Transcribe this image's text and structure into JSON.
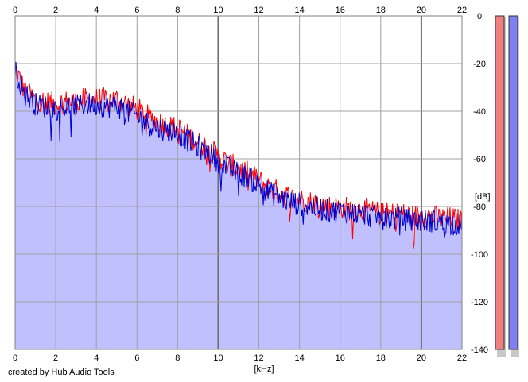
{
  "credit": "created by Hub Audio Tools",
  "chart_data": {
    "type": "area",
    "xlabel": "[kHz]",
    "ylabel": "[dB]",
    "xlim": [
      0,
      22
    ],
    "ylim": [
      -140,
      0
    ],
    "x_ticks": [
      0,
      2,
      4,
      6,
      8,
      10,
      12,
      14,
      16,
      18,
      20,
      22
    ],
    "y_ticks": [
      0,
      -20,
      -40,
      -60,
      -80,
      -100,
      -120,
      -140
    ],
    "grid": true,
    "colors": {
      "fill": "#c0c0ff",
      "channel_1": "#ff0000",
      "channel_2": "#0000cc",
      "grid": "#a0a0a0",
      "grid_major": "#6e6e6e",
      "meter_1": "#f08080",
      "meter_2": "#8080f0"
    },
    "series": [
      {
        "color": "#ff0000",
        "x": [
          0,
          0.5,
          1,
          1.5,
          2,
          2.5,
          3,
          3.5,
          4,
          4.5,
          5,
          5.5,
          6,
          6.5,
          7,
          7.5,
          8,
          8.5,
          9,
          9.5,
          10,
          10.5,
          11,
          11.5,
          12,
          12.5,
          13,
          13.5,
          14,
          14.5,
          15,
          15.5,
          16,
          16.5,
          17,
          17.5,
          18,
          18.5,
          19,
          19.5,
          20,
          20.5,
          21,
          21.5,
          22
        ],
        "values": [
          -22,
          -32,
          -35,
          -36,
          -37,
          -36,
          -36,
          -35,
          -35,
          -35,
          -35,
          -37,
          -39,
          -42,
          -44,
          -46,
          -47,
          -50,
          -53,
          -55,
          -59,
          -62,
          -64,
          -66,
          -69,
          -72,
          -74,
          -76,
          -77,
          -78,
          -79,
          -80,
          -80,
          -81,
          -81,
          -82,
          -83,
          -83,
          -83,
          -84,
          -84,
          -84,
          -85,
          -85,
          -86
        ]
      },
      {
        "color": "#0000cc",
        "x": [
          0,
          0.5,
          1,
          1.5,
          2,
          2.5,
          3,
          3.5,
          4,
          4.5,
          5,
          5.5,
          6,
          6.5,
          7,
          7.5,
          8,
          8.5,
          9,
          9.5,
          10,
          10.5,
          11,
          11.5,
          12,
          12.5,
          13,
          13.5,
          14,
          14.5,
          15,
          15.5,
          16,
          16.5,
          17,
          17.5,
          18,
          18.5,
          19,
          19.5,
          20,
          20.5,
          21,
          21.5,
          22
        ],
        "values": [
          -23,
          -33,
          -37,
          -38,
          -39,
          -38,
          -38,
          -37,
          -37,
          -38,
          -38,
          -40,
          -42,
          -45,
          -47,
          -48,
          -49,
          -52,
          -55,
          -57,
          -61,
          -64,
          -66,
          -68,
          -71,
          -74,
          -76,
          -78,
          -79,
          -80,
          -81,
          -82,
          -82,
          -83,
          -83,
          -84,
          -85,
          -85,
          -85,
          -86,
          -86,
          -86,
          -87,
          -87,
          -88
        ]
      }
    ]
  }
}
